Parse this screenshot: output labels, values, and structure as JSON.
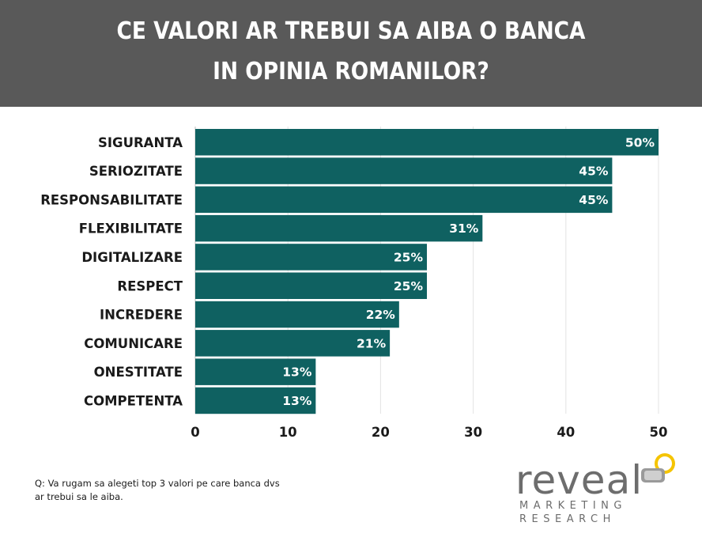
{
  "header": {
    "title_line1": "CE VALORI AR TREBUI SA AIBA O BANCA",
    "title_line2": "IN OPINIA ROMANILOR?",
    "background": "#595959"
  },
  "chart_data": {
    "type": "bar",
    "orientation": "horizontal",
    "categories": [
      "SIGURANTA",
      "SERIOZITATE",
      "RESPONSABILITATE",
      "FLEXIBILITATE",
      "DIGITALIZARE",
      "RESPECT",
      "INCREDERE",
      "COMUNICARE",
      "ONESTITATE",
      "COMPETENTA"
    ],
    "values": [
      50,
      45,
      45,
      31,
      25,
      25,
      22,
      21,
      13,
      13
    ],
    "value_labels": [
      "50%",
      "45%",
      "45%",
      "31%",
      "25%",
      "25%",
      "22%",
      "21%",
      "13%",
      "13%"
    ],
    "xlim": [
      0,
      50
    ],
    "xticks": [
      0,
      10,
      20,
      30,
      40,
      50
    ],
    "grid": "vertical",
    "bar_color": "#0f6161",
    "legend": "none"
  },
  "footnote": {
    "line1": "Q: Va rugam sa alegeti top 3 valori pe care banca dvs",
    "line2": "ar trebui sa le aiba."
  },
  "logo": {
    "word": "reveal",
    "sub1": "MARKETING",
    "sub2": "RESEARCH",
    "accent": "#f5c400",
    "gray": "#6d6d6d"
  }
}
